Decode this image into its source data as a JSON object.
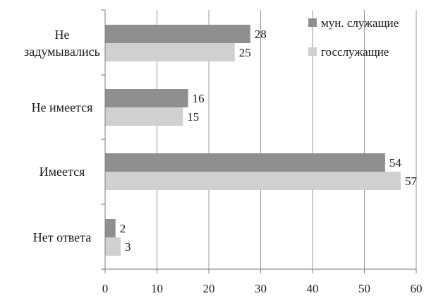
{
  "chart_data": {
    "type": "bar",
    "orientation": "horizontal",
    "categories": [
      [
        "Не",
        "задумывались"
      ],
      [
        "Не имеется"
      ],
      [
        "Имеется"
      ],
      [
        "Нет ответа"
      ]
    ],
    "series": [
      {
        "name": "мун. служащие",
        "values": [
          28,
          16,
          54,
          2
        ],
        "color": "#8f8f8f"
      },
      {
        "name": "госслужащие",
        "values": [
          25,
          15,
          57,
          3
        ],
        "color": "#d0d0d0"
      }
    ],
    "value_labels": [
      [
        "28",
        "16",
        "54",
        "2"
      ],
      [
        "25",
        "15",
        "57",
        "3"
      ]
    ],
    "xlim": [
      0,
      60
    ],
    "xticks": [
      "0",
      "10",
      "20",
      "30",
      "40",
      "50",
      "60"
    ],
    "xtick_values": [
      0,
      10,
      20,
      30,
      40,
      50,
      60
    ],
    "grid": true,
    "legend_position": "top-right",
    "gridline_color": "#9a9a9a",
    "axis_color": "#7a7a7a"
  }
}
